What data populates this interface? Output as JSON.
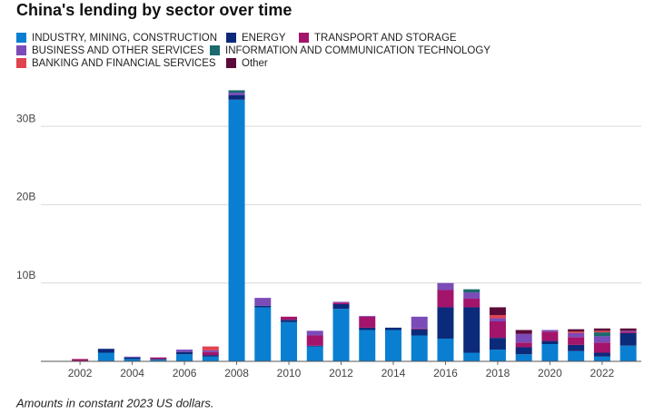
{
  "chart_data": {
    "type": "bar",
    "stacked": true,
    "title": "China's lending by sector over time",
    "note": "Amounts in constant 2023 US dollars.",
    "x": [
      2002,
      2003,
      2004,
      2005,
      2006,
      2007,
      2008,
      2009,
      2010,
      2011,
      2012,
      2013,
      2014,
      2015,
      2016,
      2017,
      2018,
      2019,
      2020,
      2021,
      2022,
      2023
    ],
    "xlim": [
      2000.5,
      2023.5
    ],
    "xticks": [
      2002,
      2004,
      2006,
      2008,
      2010,
      2012,
      2014,
      2016,
      2018,
      2020,
      2022
    ],
    "ylim": [
      0,
      35000000000
    ],
    "yticks": [
      {
        "value": 10000000000,
        "label": "10B"
      },
      {
        "value": 20000000000,
        "label": "20B"
      },
      {
        "value": 30000000000,
        "label": "30B"
      }
    ],
    "grid": true,
    "legend": "top-left",
    "series": [
      {
        "name": "INDUSTRY, MINING, CONSTRUCTION",
        "color": "#0a7fd1",
        "values": [
          0,
          1100000000,
          300000000,
          200000000,
          900000000,
          600000000,
          33400000000,
          6900000000,
          5000000000,
          1900000000,
          6700000000,
          4000000000,
          4000000000,
          3300000000,
          2900000000,
          1100000000,
          1500000000,
          900000000,
          2200000000,
          1300000000,
          600000000,
          2000000000
        ]
      },
      {
        "name": "ENERGY",
        "color": "#0c2a7a",
        "values": [
          0,
          500000000,
          200000000,
          100000000,
          300000000,
          200000000,
          600000000,
          200000000,
          300000000,
          100000000,
          600000000,
          300000000,
          300000000,
          800000000,
          4000000000,
          5800000000,
          1500000000,
          900000000,
          400000000,
          800000000,
          500000000,
          1600000000
        ]
      },
      {
        "name": "TRANSPORT AND STORAGE",
        "color": "#a3146b",
        "values": [
          300000000,
          0,
          0,
          200000000,
          0,
          400000000,
          0,
          0,
          400000000,
          1300000000,
          200000000,
          1400000000,
          0,
          100000000,
          2200000000,
          1100000000,
          2100000000,
          600000000,
          1200000000,
          1000000000,
          1300000000,
          200000000
        ]
      },
      {
        "name": "BUSINESS AND OTHER SERVICES",
        "color": "#7b4bb8",
        "values": [
          0,
          0,
          100000000,
          0,
          300000000,
          200000000,
          300000000,
          1000000000,
          0,
          600000000,
          100000000,
          100000000,
          0,
          1500000000,
          900000000,
          800000000,
          400000000,
          1100000000,
          200000000,
          500000000,
          800000000,
          100000000
        ]
      },
      {
        "name": "INFORMATION AND COMMUNICATION TECHNOLOGY",
        "color": "#1a6a6e",
        "values": [
          0,
          0,
          0,
          0,
          0,
          0,
          300000000,
          0,
          0,
          0,
          0,
          0,
          0,
          0,
          0,
          400000000,
          0,
          0,
          0,
          0,
          500000000,
          0
        ]
      },
      {
        "name": "BANKING AND FINANCIAL SERVICES",
        "color": "#e0434f",
        "values": [
          0,
          0,
          0,
          0,
          0,
          500000000,
          0,
          0,
          0,
          0,
          0,
          0,
          0,
          0,
          0,
          0,
          400000000,
          0,
          0,
          200000000,
          200000000,
          0
        ]
      },
      {
        "name": "Other",
        "color": "#5c0a3a",
        "values": [
          0,
          0,
          0,
          0,
          0,
          0,
          0,
          0,
          0,
          0,
          0,
          0,
          0,
          0,
          0,
          0,
          1000000000,
          500000000,
          0,
          300000000,
          300000000,
          300000000
        ]
      }
    ]
  }
}
